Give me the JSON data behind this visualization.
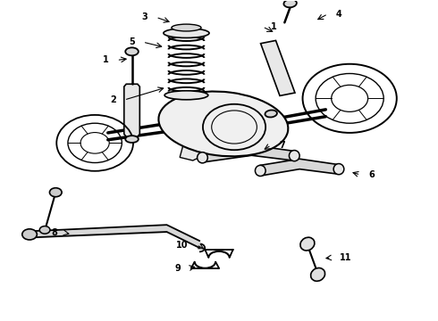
{
  "bg_color": "#ffffff",
  "line_color": "#000000",
  "gray_fill": "#e0e0e0",
  "dark_gray": "#c0c0c0"
}
